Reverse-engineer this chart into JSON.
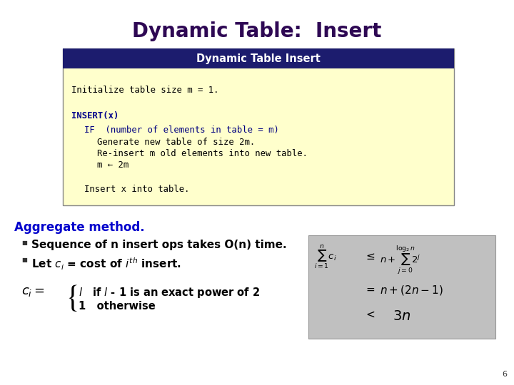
{
  "title": "Dynamic Table:  Insert",
  "title_color": "#2E0854",
  "title_fontsize": 20,
  "box_header_text": "Dynamic Table Insert",
  "box_header_bg": "#1C1C6E",
  "box_header_text_color": "#FFFFFF",
  "box_body_bg": "#FFFFCC",
  "box_border_color": "#888888",
  "aggregate_text": "Aggregate method.",
  "aggregate_color": "#0000CC",
  "bullet1": "Sequence of n insert ops takes O(n) time.",
  "slide_number": "6",
  "bg_color": "#FFFFFF",
  "gray_box_bg": "#C0C0C0",
  "gray_box_border": "#999999"
}
